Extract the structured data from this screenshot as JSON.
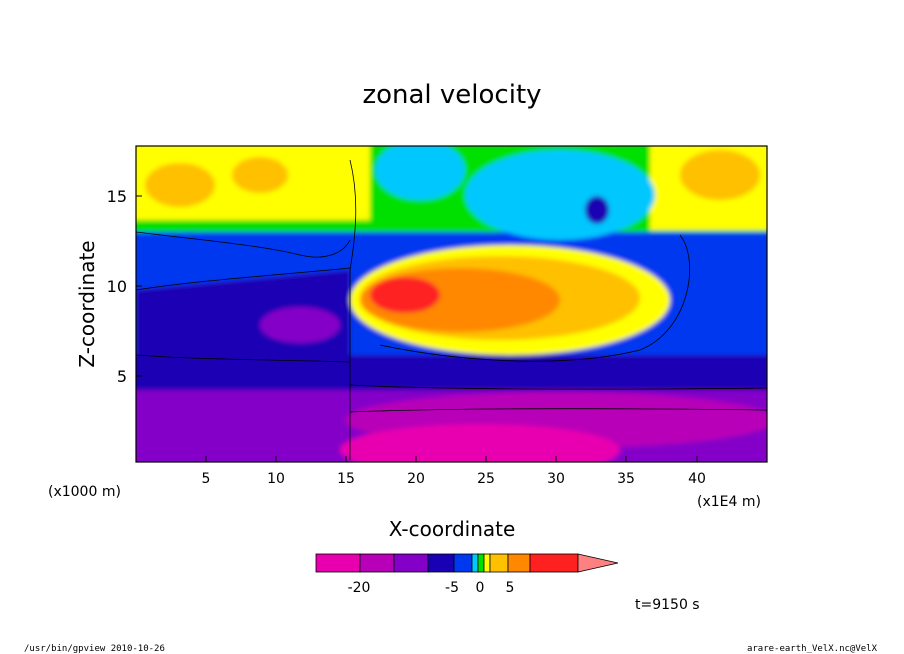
{
  "chart_data": {
    "type": "heatmap",
    "title": "zonal velocity",
    "xlabel": "X-coordinate",
    "ylabel": "Z-coordinate",
    "x_unit": "(x1E4 m)",
    "y_unit": "(x1000 m)",
    "x_ticks": [
      "5",
      "10",
      "15",
      "20",
      "25",
      "30",
      "35",
      "40"
    ],
    "y_ticks": [
      "5",
      "10",
      "15"
    ],
    "x_range": [
      0,
      45
    ],
    "y_range": [
      0,
      17.5
    ],
    "colorbar": {
      "tick_labels": [
        "-20",
        "-5",
        "0",
        "5"
      ],
      "colors": [
        "#e800b0",
        "#b800b8",
        "#8400c8",
        "#1a00b4",
        "#0038f0",
        "#00c8ff",
        "#00e000",
        "#ffff00",
        "#ffc000",
        "#ff8800",
        "#ff2020",
        "#ff8080"
      ]
    },
    "annotation": "t=9150 s"
  },
  "footer": {
    "left": "/usr/bin/gpview   2010-10-26",
    "right": "arare-earth_VelX.nc@VelX"
  }
}
